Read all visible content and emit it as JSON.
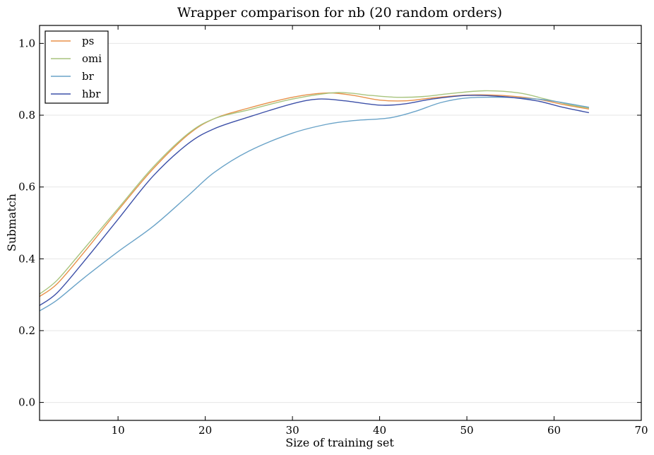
{
  "chart_data": {
    "type": "line",
    "title": "Wrapper comparison for nb (20 random orders)",
    "xlabel": "Size of training set",
    "ylabel": "Submatch",
    "xlim": [
      1,
      70
    ],
    "ylim": [
      -0.05,
      1.05
    ],
    "xticks": [
      10,
      20,
      30,
      40,
      50,
      60,
      70
    ],
    "xtick_labels": [
      "10",
      "20",
      "30",
      "40",
      "50",
      "60",
      "70"
    ],
    "yticks": [
      0.0,
      0.2,
      0.4,
      0.6,
      0.8,
      1.0
    ],
    "ytick_labels": [
      "0.0",
      "0.2",
      "0.4",
      "0.6",
      "0.8",
      "1.0"
    ],
    "grid": "horizontal",
    "legend_position": "top-left",
    "series": [
      {
        "name": "ps",
        "color": "#e8914a",
        "x": [
          1,
          3,
          6,
          10,
          14,
          18,
          21,
          25,
          30,
          34,
          37,
          40,
          43,
          46,
          50,
          54,
          58,
          61,
          64
        ],
        "y": [
          0.295,
          0.33,
          0.415,
          0.535,
          0.65,
          0.745,
          0.79,
          0.82,
          0.85,
          0.862,
          0.855,
          0.842,
          0.84,
          0.848,
          0.856,
          0.855,
          0.845,
          0.83,
          0.817
        ]
      },
      {
        "name": "omi",
        "color": "#a8c47e",
        "x": [
          1,
          3,
          6,
          10,
          14,
          18,
          21,
          25,
          30,
          35,
          39,
          42,
          45,
          48,
          52,
          56,
          59,
          62,
          64
        ],
        "y": [
          0.302,
          0.34,
          0.425,
          0.54,
          0.655,
          0.748,
          0.79,
          0.815,
          0.845,
          0.863,
          0.855,
          0.85,
          0.852,
          0.86,
          0.868,
          0.862,
          0.845,
          0.828,
          0.82
        ]
      },
      {
        "name": "br",
        "color": "#6aa3c8",
        "x": [
          1,
          3,
          6,
          10,
          14,
          18,
          21,
          25,
          30,
          34,
          37,
          41,
          44,
          47,
          50,
          54,
          58,
          61,
          64
        ],
        "y": [
          0.255,
          0.285,
          0.345,
          0.42,
          0.49,
          0.575,
          0.64,
          0.7,
          0.75,
          0.775,
          0.785,
          0.792,
          0.81,
          0.835,
          0.848,
          0.85,
          0.845,
          0.835,
          0.822
        ]
      },
      {
        "name": "hbr",
        "color": "#3d50a8",
        "x": [
          1,
          3,
          6,
          10,
          14,
          18,
          21,
          25,
          30,
          33,
          36,
          40,
          43,
          46,
          50,
          54,
          58,
          61,
          64
        ],
        "y": [
          0.27,
          0.305,
          0.39,
          0.51,
          0.63,
          0.72,
          0.762,
          0.795,
          0.832,
          0.845,
          0.84,
          0.828,
          0.832,
          0.845,
          0.855,
          0.852,
          0.84,
          0.822,
          0.807
        ]
      }
    ]
  }
}
